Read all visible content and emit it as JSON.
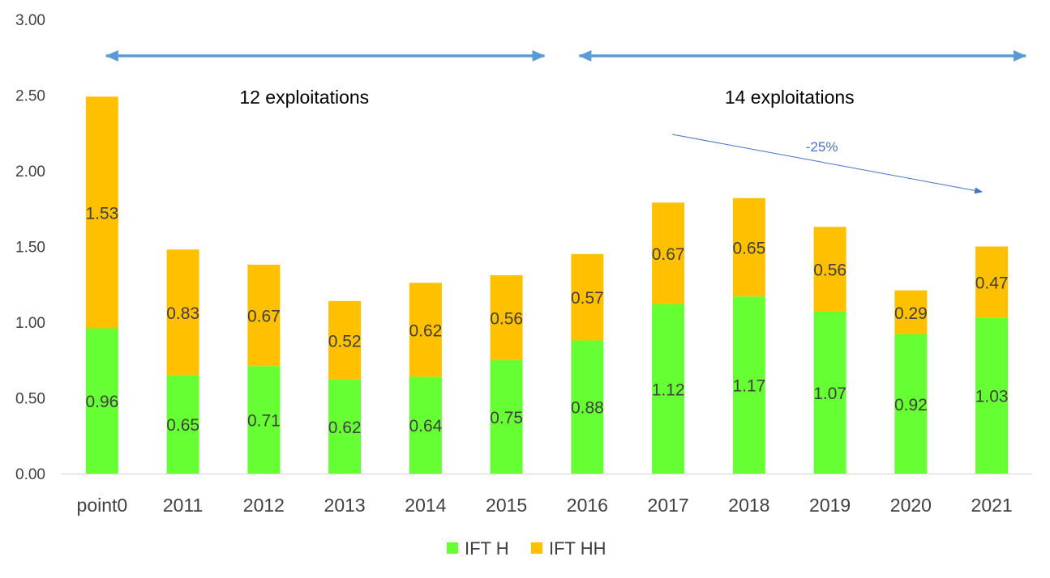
{
  "chart_data": {
    "type": "bar",
    "stacked": true,
    "categories": [
      "point0",
      "2011",
      "2012",
      "2013",
      "2014",
      "2015",
      "2016",
      "2017",
      "2018",
      "2019",
      "2020",
      "2021"
    ],
    "series": [
      {
        "name": "IFT H",
        "color": "#66FF33",
        "values": [
          0.96,
          0.65,
          0.71,
          0.62,
          0.64,
          0.75,
          0.88,
          1.12,
          1.17,
          1.07,
          0.92,
          1.03
        ]
      },
      {
        "name": "IFT HH",
        "color": "#FFC000",
        "values": [
          1.53,
          0.83,
          0.67,
          0.52,
          0.62,
          0.56,
          0.57,
          0.67,
          0.65,
          0.56,
          0.29,
          0.47
        ]
      }
    ],
    "ylim": [
      0,
      3
    ],
    "yticks": [
      "0.00",
      "0.50",
      "1.00",
      "1.50",
      "2.00",
      "2.50",
      "3.00"
    ],
    "grid": false,
    "legend": "bottom",
    "annotations": {
      "periods": [
        {
          "label": "12 exploitations",
          "from": "point0",
          "to": "2015"
        },
        {
          "label": "14 exploitations",
          "from": "2016",
          "to": "2021"
        }
      ],
      "trend": {
        "label": "-25%",
        "from": "2017",
        "to": "2021"
      },
      "arrow_color": "#5B9BD5",
      "trend_color": "#4472C4"
    }
  }
}
